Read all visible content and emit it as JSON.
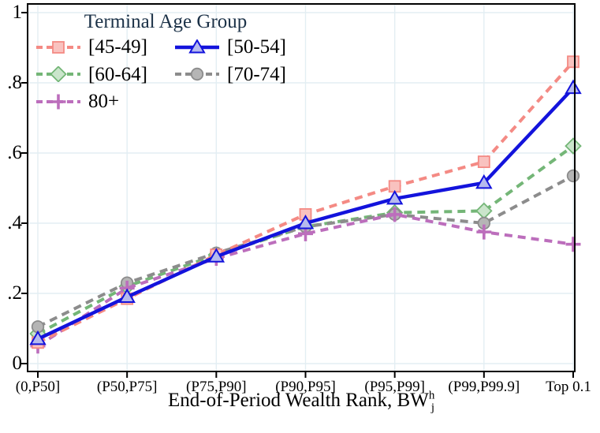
{
  "chart_data": {
    "type": "line",
    "title": "",
    "categories": [
      "(0,P50]",
      "(P50,P75]",
      "(P75,P90]",
      "(P90,P95]",
      "(P95,P99]",
      "(P99,P99.9]",
      "Top 0.1"
    ],
    "xlabel_base": "End-of-Period Wealth Rank, BW",
    "xlabel_sup": "h",
    "xlabel_sub": "j",
    "ylabel": "",
    "ylim": [
      0,
      1
    ],
    "y_ticks": [
      0,
      0.2,
      0.4,
      0.6,
      0.8,
      1
    ],
    "y_tick_labels": [
      "0",
      ".2",
      ".4",
      ".6",
      ".8",
      "1"
    ],
    "grid": "on",
    "legend": {
      "title": "Terminal Age Group",
      "position": "top-left-inside",
      "columns": 2
    },
    "series": [
      {
        "name": "[45-49]",
        "marker": "square",
        "line_style": "dashed",
        "color": "#f48a84",
        "marker_fill": "#f9c2bf",
        "values": [
          0.06,
          0.185,
          0.31,
          0.425,
          0.505,
          0.575,
          0.86
        ]
      },
      {
        "name": "[50-54]",
        "marker": "triangle",
        "line_style": "solid",
        "color": "#1313dc",
        "marker_fill": "#b6baee",
        "values": [
          0.07,
          0.19,
          0.305,
          0.4,
          0.47,
          0.515,
          0.785
        ]
      },
      {
        "name": "[60-64]",
        "marker": "diamond",
        "line_style": "dashed",
        "color": "#74b677",
        "marker_fill": "#cae5cb",
        "values": [
          0.085,
          0.22,
          0.31,
          0.39,
          0.43,
          0.435,
          0.62
        ]
      },
      {
        "name": "[70-74]",
        "marker": "circle",
        "line_style": "dashed",
        "color": "#8c8c8c",
        "marker_fill": "#b5b5b5",
        "values": [
          0.105,
          0.23,
          0.315,
          0.39,
          0.425,
          0.4,
          0.535
        ]
      },
      {
        "name": "80+",
        "marker": "plus",
        "line_style": "dashed",
        "color": "#bc6ebc",
        "marker_fill": "#bc6ebc",
        "values": [
          0.05,
          0.215,
          0.3,
          0.37,
          0.425,
          0.375,
          0.34
        ]
      }
    ],
    "colors": {
      "grid": "#e3eef3",
      "axis": "#000000",
      "legend_title_text": "#1b3147",
      "tick_text": "#000000"
    }
  }
}
